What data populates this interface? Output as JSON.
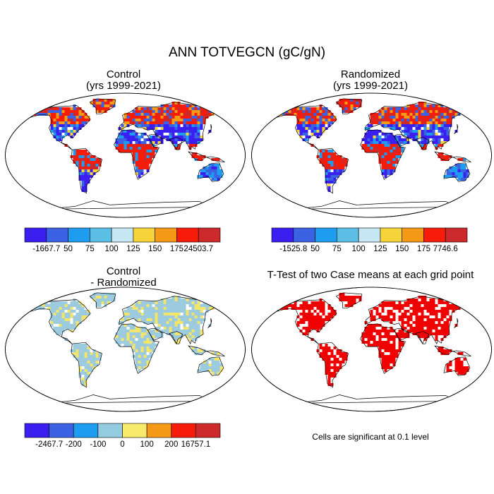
{
  "title": "ANN TOTVEGCN (gC/gN)",
  "panels": [
    {
      "id": "control",
      "title_line1": "Control",
      "title_line2": "(yrs 1999-2021)",
      "colorbar": {
        "colors": [
          "#3a1ff0",
          "#3a62e2",
          "#1e9cf0",
          "#5cbfe6",
          "#c6e8f4",
          "#f6d43a",
          "#f59a16",
          "#f71c0a",
          "#cc2a2a"
        ],
        "labels": [
          "-1667.7",
          "50",
          "75",
          "100",
          "125",
          "150",
          "175",
          "24503.7"
        ]
      }
    },
    {
      "id": "randomized",
      "title_line1": "Randomized",
      "title_line2": "(yrs 1999-2021)",
      "colorbar": {
        "colors": [
          "#3a1ff0",
          "#3a62e2",
          "#1e9cf0",
          "#5cbfe6",
          "#c6e8f4",
          "#f6d43a",
          "#f59a16",
          "#f71c0a",
          "#cc2a2a"
        ],
        "labels": [
          "-1525.8",
          "50",
          "75",
          "100",
          "125",
          "150",
          "175",
          "7746.6"
        ]
      }
    },
    {
      "id": "difference",
      "title_line1": "Control",
      "title_line2": "- Randomized",
      "colorbar": {
        "colors": [
          "#3a1ff0",
          "#3a62e2",
          "#1e9cf0",
          "#93cbe0",
          "#f8ea6a",
          "#f59a16",
          "#f71c0a",
          "#cc2a2a"
        ],
        "labels": [
          "-2467.7",
          "-200",
          "-100",
          "0",
          "100",
          "200",
          "16757.1"
        ]
      }
    },
    {
      "id": "ttest",
      "title_line1": "T-Test of two Case means at each grid point",
      "note": "Cells are significant at 0.1 level"
    }
  ],
  "map_colors": {
    "ocean": "#ffffff",
    "coast": "#000000",
    "control_base": "#3a3ae8",
    "difference_base": "#9ccbe0",
    "difference_accent": "#f3e46a",
    "ttest_accent": "#f00000"
  }
}
